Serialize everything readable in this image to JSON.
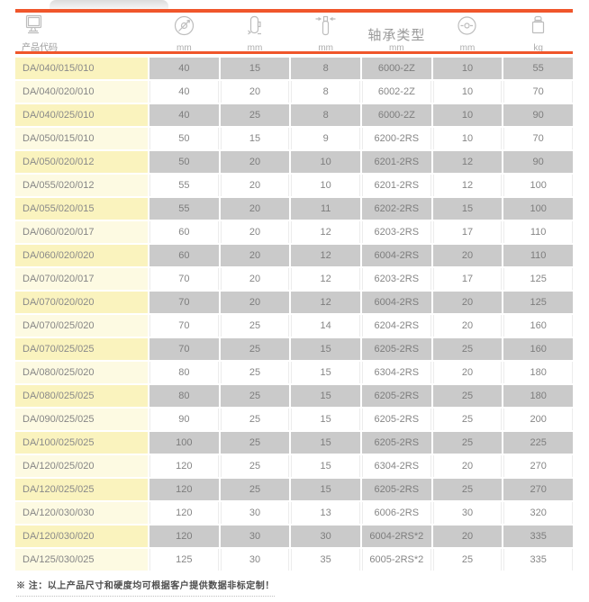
{
  "colors": {
    "accent_orange": "#F0562B",
    "row_gray": "#CACACA",
    "product_col_yellow_dark": "#FAF3BE",
    "product_col_yellow_light": "#FDFAE2"
  },
  "table": {
    "columns": [
      {
        "id": "product_code",
        "label": "产品代码",
        "unit": "",
        "icon": "monitor-icon"
      },
      {
        "id": "wheel_diameter",
        "label": "",
        "unit": "mm",
        "icon": "wheel-diameter-icon"
      },
      {
        "id": "wheel_width",
        "label": "",
        "unit": "mm",
        "icon": "wheel-width-icon"
      },
      {
        "id": "axle_bore",
        "label": "",
        "unit": "mm",
        "icon": "axle-bore-icon"
      },
      {
        "id": "bearing_type",
        "label": "轴承类型",
        "unit": "mm",
        "icon": ""
      },
      {
        "id": "hub_length",
        "label": "",
        "unit": "mm",
        "icon": "hub-length-icon"
      },
      {
        "id": "load_weight",
        "label": "",
        "unit": "kg",
        "icon": "weight-icon"
      }
    ],
    "rows": [
      [
        "DA/040/015/010",
        "40",
        "15",
        "8",
        "6000-2Z",
        "10",
        "55"
      ],
      [
        "DA/040/020/010",
        "40",
        "20",
        "8",
        "6002-2Z",
        "10",
        "70"
      ],
      [
        "DA/040/025/010",
        "40",
        "25",
        "8",
        "6000-2Z",
        "10",
        "90"
      ],
      [
        "DA/050/015/010",
        "50",
        "15",
        "9",
        "6200-2RS",
        "10",
        "70"
      ],
      [
        "DA/050/020/012",
        "50",
        "20",
        "10",
        "6201-2RS",
        "12",
        "90"
      ],
      [
        "DA/055/020/012",
        "55",
        "20",
        "10",
        "6201-2RS",
        "12",
        "100"
      ],
      [
        "DA/055/020/015",
        "55",
        "20",
        "11",
        "6202-2RS",
        "15",
        "100"
      ],
      [
        "DA/060/020/017",
        "60",
        "20",
        "12",
        "6203-2RS",
        "17",
        "110"
      ],
      [
        "DA/060/020/020",
        "60",
        "20",
        "12",
        "6004-2RS",
        "20",
        "110"
      ],
      [
        "DA/070/020/017",
        "70",
        "20",
        "12",
        "6203-2RS",
        "17",
        "125"
      ],
      [
        "DA/070/020/020",
        "70",
        "20",
        "12",
        "6004-2RS",
        "20",
        "125"
      ],
      [
        "DA/070/025/020",
        "70",
        "25",
        "14",
        "6204-2RS",
        "20",
        "160"
      ],
      [
        "DA/070/025/025",
        "70",
        "25",
        "15",
        "6205-2RS",
        "25",
        "160"
      ],
      [
        "DA/080/025/020",
        "80",
        "25",
        "15",
        "6304-2RS",
        "20",
        "180"
      ],
      [
        "DA/080/025/025",
        "80",
        "25",
        "15",
        "6205-2RS",
        "25",
        "180"
      ],
      [
        "DA/090/025/025",
        "90",
        "25",
        "15",
        "6205-2RS",
        "25",
        "200"
      ],
      [
        "DA/100/025/025",
        "100",
        "25",
        "15",
        "6205-2RS",
        "25",
        "225"
      ],
      [
        "DA/120/025/020",
        "120",
        "25",
        "15",
        "6304-2RS",
        "20",
        "270"
      ],
      [
        "DA/120/025/025",
        "120",
        "25",
        "15",
        "6205-2RS",
        "25",
        "270"
      ],
      [
        "DA/120/030/030",
        "120",
        "30",
        "13",
        "6006-2RS",
        "30",
        "320"
      ],
      [
        "DA/120/030/020",
        "120",
        "30",
        "30",
        "6004-2RS*2",
        "20",
        "335"
      ],
      [
        "DA/125/030/025",
        "125",
        "30",
        "35",
        "6005-2RS*2",
        "25",
        "335"
      ]
    ]
  },
  "footer": {
    "note": "※ 注：以上产品尺寸和硬度均可根据客户提供数据非标定制！"
  }
}
